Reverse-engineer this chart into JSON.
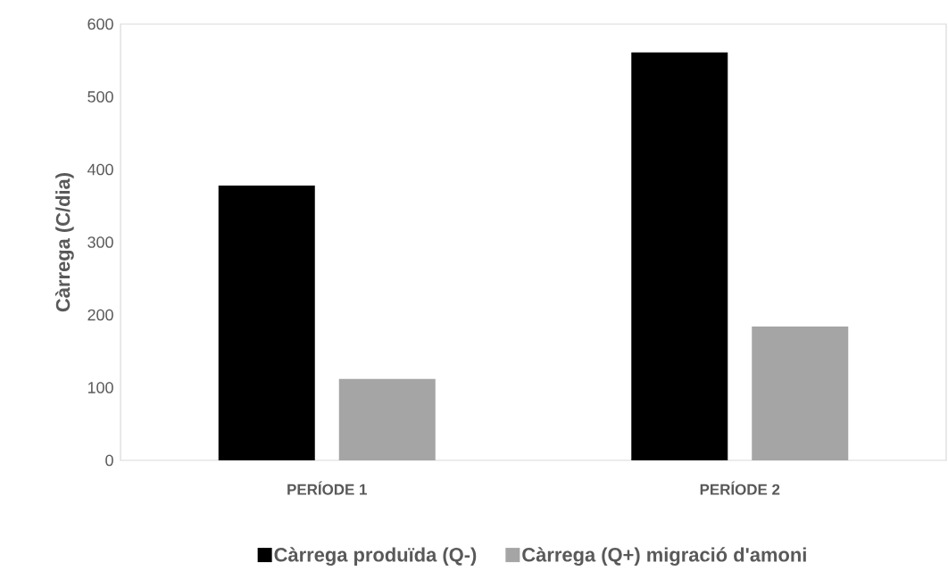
{
  "chart_data": {
    "type": "bar",
    "ylabel": "Càrrega (C/dia)",
    "categories": [
      "PERÍODE 1",
      "PERÍODE 2"
    ],
    "series": [
      {
        "name": "Càrrega produïda (Q-)",
        "color": "#000000",
        "values": [
          378,
          561
        ]
      },
      {
        "name": "Càrrega (Q+) migració d'amoni",
        "color": "#a5a5a5",
        "values": [
          112,
          184
        ]
      }
    ],
    "ylim": [
      0,
      600
    ],
    "yticks": [
      0,
      100,
      200,
      300,
      400,
      500,
      600
    ],
    "legend": "bottom"
  }
}
